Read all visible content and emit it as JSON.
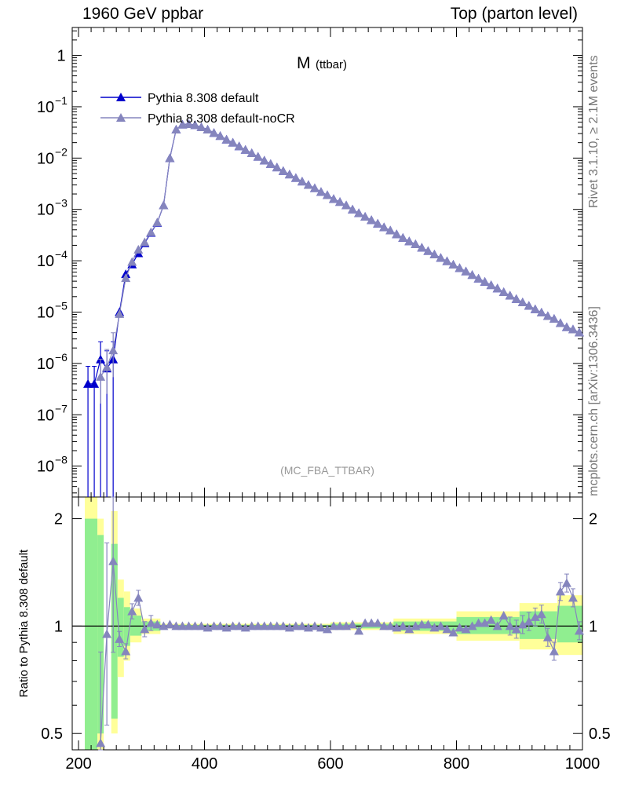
{
  "header": {
    "left": "1960 GeV ppbar",
    "right": "Top (parton level)"
  },
  "side_labels": {
    "rivet": "Rivet 3.1.10, ≥ 2.1M events",
    "mcplots": "mcplots.cern.ch [arXiv:1306.3436]"
  },
  "chart_data": [
    {
      "type": "line",
      "title_main": "M",
      "title_sub": "(ttbar)",
      "watermark": "(MC_FBA_TTBAR)",
      "yscale": "log",
      "ylim": [
        2.5e-09,
        3.5
      ],
      "xlim": [
        190,
        1000
      ],
      "y_tick_labels": [
        "1",
        "10",
        "10",
        "10",
        "10",
        "10",
        "10",
        "10",
        "10"
      ],
      "y_tick_exponents": [
        "",
        "−1",
        "−2",
        "−3",
        "−4",
        "−5",
        "−6",
        "−7",
        "−8"
      ],
      "legend_position": "top-left",
      "series": [
        {
          "name": "Pythia 8.308 default",
          "color": "#0000cc",
          "x": [
            215,
            225,
            235,
            245,
            255,
            265,
            275,
            285,
            295,
            305,
            315,
            325,
            335,
            345,
            355,
            365,
            375,
            385,
            395,
            405,
            415,
            425,
            435,
            445,
            455,
            465,
            475,
            485,
            495,
            505,
            515,
            525,
            535,
            545,
            555,
            565,
            575,
            585,
            595,
            605,
            615,
            625,
            635,
            645,
            655,
            665,
            675,
            685,
            695,
            705,
            715,
            725,
            735,
            745,
            755,
            765,
            775,
            785,
            795,
            805,
            815,
            825,
            835,
            845,
            855,
            865,
            875,
            885,
            895,
            905,
            915,
            925,
            935,
            945,
            955,
            965,
            975,
            985,
            995
          ],
          "y": [
            4e-07,
            4e-07,
            1.2e-06,
            8e-07,
            1.2e-06,
            1e-05,
            5.5e-05,
            8.5e-05,
            0.00014,
            0.00022,
            0.00035,
            0.00055,
            0.0012,
            0.01,
            0.036,
            0.045,
            0.046,
            0.044,
            0.04,
            0.036,
            0.031,
            0.027,
            0.023,
            0.02,
            0.017,
            0.0145,
            0.0125,
            0.0106,
            0.009,
            0.0077,
            0.0066,
            0.0056,
            0.0048,
            0.0041,
            0.0035,
            0.003,
            0.0026,
            0.0022,
            0.0019,
            0.0016,
            0.0014,
            0.0012,
            0.001,
            0.00085,
            0.00072,
            0.00062,
            0.00053,
            0.00045,
            0.00039,
            0.00033,
            0.00028,
            0.00024,
            0.00021,
            0.00018,
            0.000155,
            0.000133,
            0.000114,
            9.8e-05,
            8.4e-05,
            7.2e-05,
            6.2e-05,
            5.3e-05,
            4.5e-05,
            3.9e-05,
            3.35e-05,
            2.9e-05,
            2.45e-05,
            2.1e-05,
            1.8e-05,
            1.55e-05,
            1.33e-05,
            1.14e-05,
            9.8e-06,
            8.4e-06,
            7.4e-06,
            6.1e-06,
            5.1e-06,
            4.6e-06,
            4e-06
          ]
        },
        {
          "name": "Pythia 8.308 default-noCR",
          "color": "#8585bd",
          "x": [
            235,
            245,
            255,
            265,
            275,
            285,
            295,
            305,
            315,
            325,
            335,
            345,
            355,
            365,
            375,
            385,
            395,
            405,
            415,
            425,
            435,
            445,
            455,
            465,
            475,
            485,
            495,
            505,
            515,
            525,
            535,
            545,
            555,
            565,
            575,
            585,
            595,
            605,
            615,
            625,
            635,
            645,
            655,
            665,
            675,
            685,
            695,
            705,
            715,
            725,
            735,
            745,
            755,
            765,
            775,
            785,
            795,
            805,
            815,
            825,
            835,
            845,
            855,
            865,
            875,
            885,
            895,
            905,
            915,
            925,
            935,
            945,
            955,
            965,
            975,
            985,
            995
          ],
          "y": [
            5.5e-07,
            8.5e-07,
            1.8e-06,
            9.2e-06,
            4.6e-05,
            9.5e-05,
            0.000165,
            0.00023,
            0.00036,
            0.00056,
            0.0012,
            0.01,
            0.036,
            0.045,
            0.046,
            0.044,
            0.04,
            0.036,
            0.031,
            0.027,
            0.023,
            0.02,
            0.017,
            0.0145,
            0.0125,
            0.0106,
            0.009,
            0.0077,
            0.0066,
            0.0056,
            0.0048,
            0.0041,
            0.0035,
            0.003,
            0.0026,
            0.0022,
            0.0019,
            0.0016,
            0.0014,
            0.0012,
            0.001,
            0.00085,
            0.00072,
            0.00062,
            0.00053,
            0.00045,
            0.00039,
            0.00033,
            0.00028,
            0.00024,
            0.00021,
            0.00018,
            0.000155,
            0.000133,
            0.000114,
            9.8e-05,
            8.4e-05,
            7.2e-05,
            6.2e-05,
            5.3e-05,
            4.5e-05,
            3.9e-05,
            3.35e-05,
            2.9e-05,
            2.45e-05,
            2.1e-05,
            1.8e-05,
            1.55e-05,
            1.33e-05,
            1.14e-05,
            9.8e-06,
            8.4e-06,
            7.4e-06,
            6.1e-06,
            5.1e-06,
            4.6e-06,
            4e-06
          ]
        }
      ]
    },
    {
      "type": "line",
      "ylabel": "Ratio to Pythia 8.308 default",
      "yscale": "log",
      "ylim": [
        0.45,
        2.3
      ],
      "xlim": [
        190,
        1000
      ],
      "x_tick_labels": [
        "200",
        "400",
        "600",
        "800",
        "1000"
      ],
      "y_tick_labels": [
        "0.5",
        "1",
        "2"
      ],
      "band_colors": {
        "inner": "#90ee90",
        "outer": "#ffff99"
      },
      "series": [
        {
          "name": "Pythia 8.308 default-noCR",
          "color": "#8585bd",
          "x": [
            235,
            245,
            255,
            265,
            275,
            285,
            295,
            305,
            315,
            325,
            335,
            345,
            355,
            365,
            375,
            385,
            395,
            405,
            415,
            425,
            435,
            445,
            455,
            465,
            475,
            485,
            495,
            505,
            515,
            525,
            535,
            545,
            555,
            565,
            575,
            585,
            595,
            605,
            615,
            625,
            635,
            645,
            655,
            665,
            675,
            685,
            695,
            705,
            715,
            725,
            735,
            745,
            755,
            765,
            775,
            785,
            795,
            805,
            815,
            825,
            835,
            845,
            855,
            865,
            875,
            885,
            895,
            905,
            915,
            925,
            935,
            945,
            955,
            965,
            975,
            985,
            995
          ],
          "y": [
            0.47,
            0.95,
            1.52,
            0.92,
            0.85,
            1.1,
            1.2,
            0.98,
            1.02,
            1.01,
            1.0,
            1.01,
            1.0,
            1.0,
            1.0,
            1.0,
            1.0,
            0.99,
            1.0,
            1.0,
            0.99,
            1.0,
            1.0,
            0.99,
            1.0,
            1.0,
            1.0,
            1.0,
            1.0,
            1.0,
            0.99,
            1.0,
            1.0,
            0.99,
            1.0,
            0.99,
            0.98,
            1.0,
            1.0,
            1.0,
            1.01,
            0.97,
            1.02,
            1.02,
            1.02,
            1.0,
            1.0,
            0.99,
            1.0,
            0.98,
            1.0,
            1.01,
            1.01,
            0.99,
            1.0,
            0.98,
            0.96,
            0.99,
            0.98,
            1.0,
            1.02,
            1.02,
            1.04,
            1.0,
            1.07,
            1.0,
            0.98,
            1.01,
            1.03,
            1.06,
            1.08,
            0.93,
            0.85,
            1.25,
            1.32,
            1.2,
            0.97
          ]
        }
      ]
    }
  ]
}
